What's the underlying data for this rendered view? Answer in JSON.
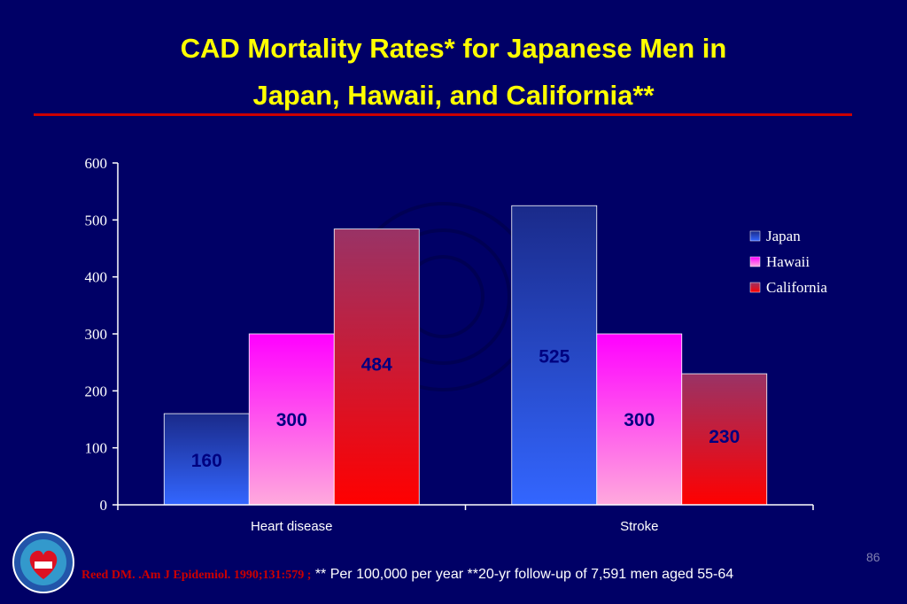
{
  "title_line1": "CAD Mortality Rates* for Japanese Men in",
  "title_line2": "Japan, Hawaii, and California**",
  "footer": {
    "reference": "Reed DM. .Am J  Epidemiol. 1990;131:579 ;",
    "note": "** Per 100,000 per year **20-yr follow-up of 7,591 men aged 55-64"
  },
  "slide_number": "86",
  "chart_data": {
    "type": "bar",
    "categories": [
      "Heart disease",
      "Stroke"
    ],
    "series": [
      {
        "name": "Japan",
        "values": [
          160,
          525
        ],
        "color_top": "#1a2a8a",
        "color_bottom": "#3366ff"
      },
      {
        "name": "Hawaii",
        "values": [
          300,
          300
        ],
        "color_top": "#ff00ff",
        "color_bottom": "#ffaadd"
      },
      {
        "name": "California",
        "values": [
          484,
          230
        ],
        "color_top": "#993366",
        "color_bottom": "#ff0000"
      }
    ],
    "ylim": [
      0,
      600
    ],
    "yticks": [
      "0",
      "100",
      "200",
      "300",
      "400",
      "500",
      "600"
    ],
    "data_labels": [
      [
        "160",
        "525"
      ],
      [
        "300",
        "300"
      ],
      [
        "484",
        "230"
      ]
    ],
    "legend_position": "right",
    "xlabel": "",
    "ylabel": ""
  },
  "colors": {
    "background": "#000066",
    "title": "#ffff00",
    "divider": "#cc0000",
    "data_label": "#000080"
  }
}
